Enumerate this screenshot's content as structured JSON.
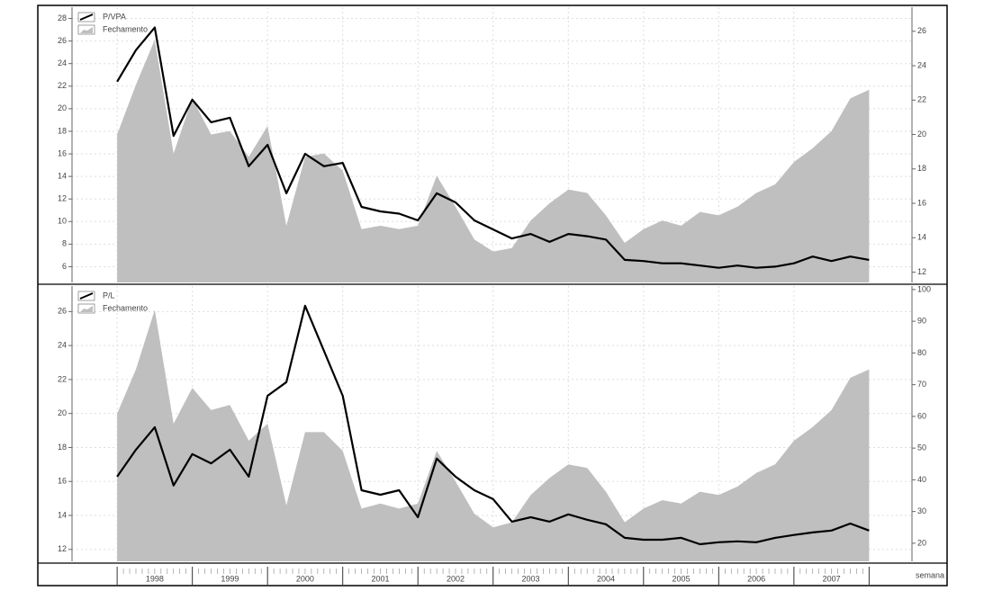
{
  "chart_data": [
    {
      "type": "line",
      "x": [
        1998,
        1998.25,
        1998.5,
        1998.75,
        1999,
        1999.25,
        1999.5,
        1999.75,
        2000,
        2000.25,
        2000.5,
        2000.75,
        2001,
        2001.25,
        2001.5,
        2001.75,
        2002,
        2002.25,
        2002.5,
        2002.75,
        2003,
        2003.25,
        2003.5,
        2003.75,
        2004,
        2004.25,
        2004.5,
        2004.75,
        2005,
        2005.25,
        2005.5,
        2005.75,
        2006,
        2006.25,
        2006.5,
        2006.75,
        2007,
        2007.25,
        2007.5,
        2007.75,
        2008
      ],
      "xlim": [
        1997.4,
        2008.57
      ],
      "ylim": [
        4.6,
        29
      ],
      "yticks": [
        6,
        8,
        10,
        12,
        14,
        16,
        18,
        20,
        22,
        24,
        26,
        28
      ],
      "y2lim": [
        11.4,
        27.4
      ],
      "y2ticks": [
        12,
        14,
        16,
        18,
        20,
        22,
        24,
        26
      ],
      "grid": true,
      "legend": "top-left",
      "series": [
        {
          "name": "Fechamento",
          "kind": "area",
          "axis": "y2",
          "color": "#bfbfbf",
          "values": [
            20.0,
            22.9,
            25.5,
            18.9,
            22.1,
            20.0,
            20.2,
            18.7,
            20.5,
            14.7,
            18.7,
            18.9,
            17.9,
            14.5,
            14.7,
            14.5,
            14.7,
            17.6,
            15.8,
            13.9,
            13.2,
            13.4,
            15.0,
            16.0,
            16.8,
            16.6,
            15.3,
            13.7,
            14.5,
            15.0,
            14.7,
            15.5,
            15.3,
            15.8,
            16.6,
            17.1,
            18.4,
            19.2,
            20.2,
            22.1,
            22.6
          ]
        },
        {
          "name": "P/VPA",
          "kind": "line",
          "axis": "y",
          "color": "#000000",
          "values": [
            22.4,
            25.2,
            27.2,
            17.6,
            20.8,
            18.8,
            19.2,
            14.9,
            16.8,
            12.5,
            16.0,
            14.9,
            15.2,
            11.3,
            10.9,
            10.7,
            10.1,
            12.5,
            11.7,
            10.1,
            9.3,
            8.5,
            8.9,
            8.2,
            8.9,
            8.7,
            8.4,
            6.6,
            6.5,
            6.3,
            6.3,
            6.1,
            5.9,
            6.1,
            5.9,
            6.0,
            6.3,
            6.9,
            6.5,
            6.9,
            6.6
          ]
        }
      ]
    },
    {
      "type": "line",
      "x": [
        1998,
        1998.25,
        1998.5,
        1998.75,
        1999,
        1999.25,
        1999.5,
        1999.75,
        2000,
        2000.25,
        2000.5,
        2000.75,
        2001,
        2001.25,
        2001.5,
        2001.75,
        2002,
        2002.25,
        2002.5,
        2002.75,
        2003,
        2003.25,
        2003.5,
        2003.75,
        2004,
        2004.25,
        2004.5,
        2004.75,
        2005,
        2005.25,
        2005.5,
        2005.75,
        2006,
        2006.25,
        2006.5,
        2006.75,
        2007,
        2007.25,
        2007.5,
        2007.75,
        2008
      ],
      "xlim": [
        1997.4,
        2008.57
      ],
      "xticks": [
        {
          "value": 1998,
          "label": "1998"
        },
        {
          "value": 1999,
          "label": "1999"
        },
        {
          "value": 2000,
          "label": "2000"
        },
        {
          "value": 2001,
          "label": "2001"
        },
        {
          "value": 2002,
          "label": "2002"
        },
        {
          "value": 2003,
          "label": "2003"
        },
        {
          "value": 2004,
          "label": "2004"
        },
        {
          "value": 2005,
          "label": "2005"
        },
        {
          "value": 2006,
          "label": "2006"
        },
        {
          "value": 2007,
          "label": "2007"
        }
      ],
      "x_label": "semana",
      "ylim": [
        11.3,
        27.5
      ],
      "yticks": [
        12,
        14,
        16,
        18,
        20,
        22,
        24,
        26
      ],
      "y2lim": [
        14.3,
        101.1
      ],
      "y2ticks": [
        20,
        30,
        40,
        50,
        60,
        70,
        80,
        90,
        100
      ],
      "grid": true,
      "legend": "top-left",
      "series": [
        {
          "name": "Fechamento",
          "kind": "area",
          "axis": "y",
          "color": "#bfbfbf",
          "values": [
            20.0,
            22.6,
            26.1,
            19.4,
            21.5,
            20.2,
            20.5,
            18.4,
            19.4,
            14.6,
            18.9,
            18.9,
            17.8,
            14.4,
            14.7,
            14.4,
            14.7,
            17.8,
            16.0,
            14.1,
            13.3,
            13.6,
            15.2,
            16.2,
            17.0,
            16.8,
            15.4,
            13.6,
            14.4,
            14.9,
            14.7,
            15.4,
            15.2,
            15.7,
            16.5,
            17.0,
            18.4,
            19.2,
            20.2,
            22.1,
            22.6
          ]
        },
        {
          "name": "P/L",
          "kind": "line",
          "axis": "y2",
          "color": "#000000",
          "values": [
            41,
            49.5,
            56.6,
            38.2,
            48.1,
            45.2,
            49.5,
            41,
            66.5,
            70.8,
            94.9,
            80.7,
            66.5,
            36.7,
            35.3,
            36.7,
            28.2,
            46.7,
            41,
            36.7,
            33.9,
            26.8,
            28.2,
            26.8,
            29.1,
            27.4,
            26.0,
            21.7,
            21.1,
            21.1,
            21.7,
            19.7,
            20.3,
            20.6,
            20.3,
            21.7,
            22.6,
            23.4,
            24.0,
            26.2,
            24.0
          ]
        }
      ]
    }
  ]
}
